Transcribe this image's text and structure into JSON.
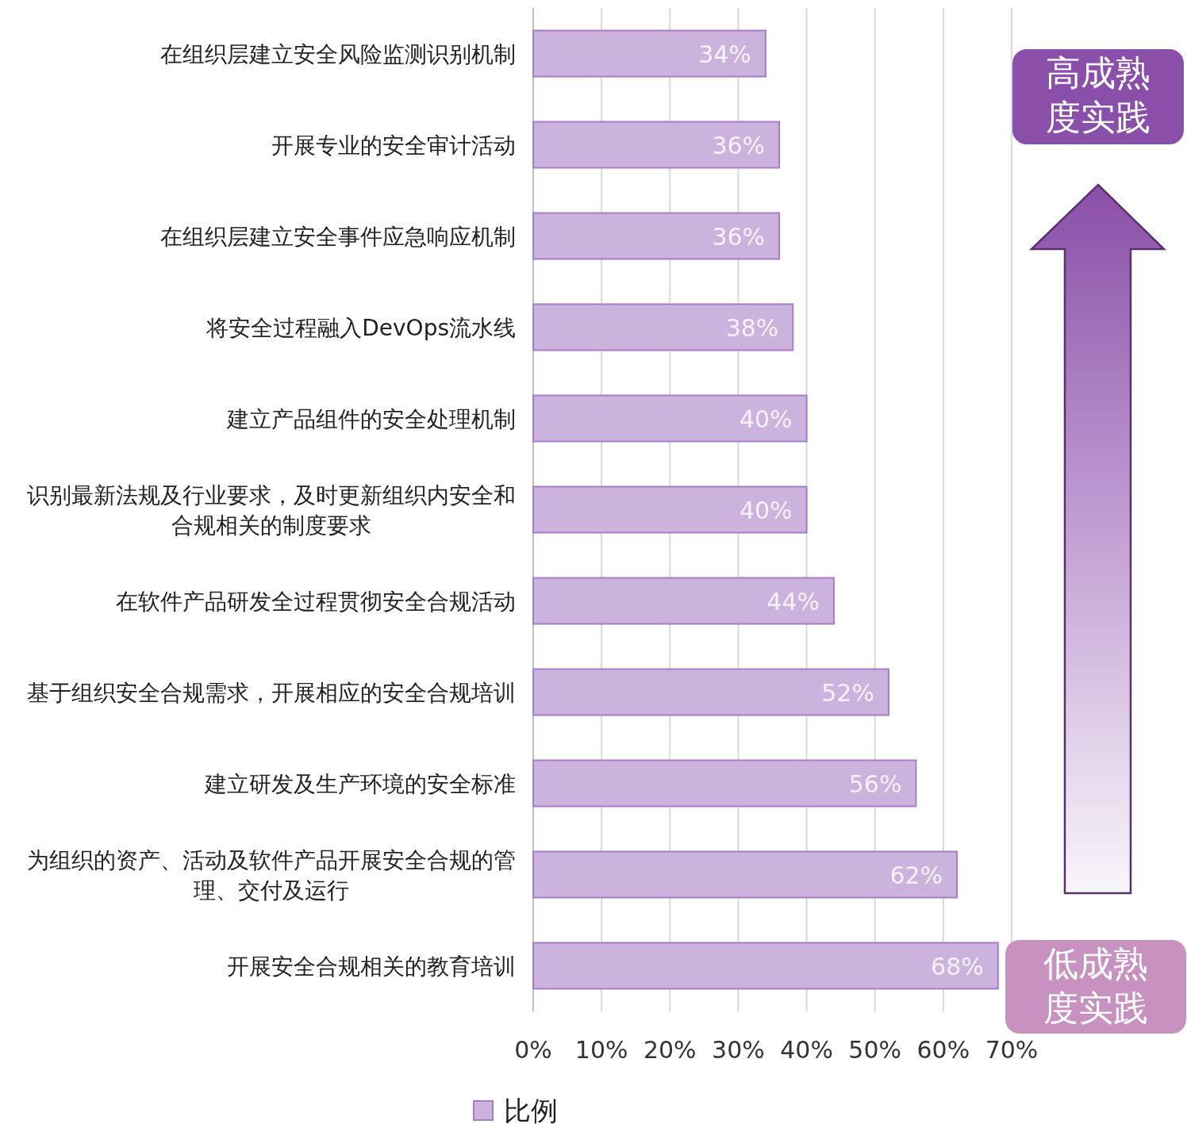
{
  "chart_data": {
    "type": "bar",
    "orientation": "horizontal",
    "categories": [
      "在组织层建立安全风险监测识别机制",
      "开展专业的安全审计活动",
      "在组织层建立安全事件应急响应机制",
      "将安全过程融入DevOps流水线",
      "建立产品组件的安全处理机制",
      "识别最新法规及行业要求，及时更新组织内安全和合规相关的制度要求",
      "在软件产品研发全过程贯彻安全合规活动",
      "基于组织安全合规需求，开展相应的安全合规培训",
      "建立研发及生产环境的安全标准",
      "为组织的资产、活动及软件产品开展安全合规的管理、交付及运行",
      "开展安全合规相关的教育培训"
    ],
    "series": [
      {
        "name": "比例",
        "color": "#cbb3de",
        "values": [
          34,
          36,
          36,
          38,
          40,
          40,
          44,
          52,
          56,
          62,
          68
        ],
        "value_labels": [
          "34%",
          "36%",
          "36%",
          "38%",
          "40%",
          "40%",
          "44%",
          "52%",
          "56%",
          "62%",
          "68%"
        ]
      }
    ],
    "xlim": [
      0,
      70
    ],
    "xticks": [
      {
        "value": 0,
        "label": "0%"
      },
      {
        "value": 10,
        "label": "10%"
      },
      {
        "value": 20,
        "label": "20%"
      },
      {
        "value": 30,
        "label": "30%"
      },
      {
        "value": 40,
        "label": "40%"
      },
      {
        "value": 50,
        "label": "50%"
      },
      {
        "value": 60,
        "label": "60%"
      },
      {
        "value": 70,
        "label": "70%"
      }
    ],
    "grid": "x",
    "legend": "bottom",
    "annotations": [
      "高成熟度实践",
      "低成熟度实践"
    ]
  }
}
